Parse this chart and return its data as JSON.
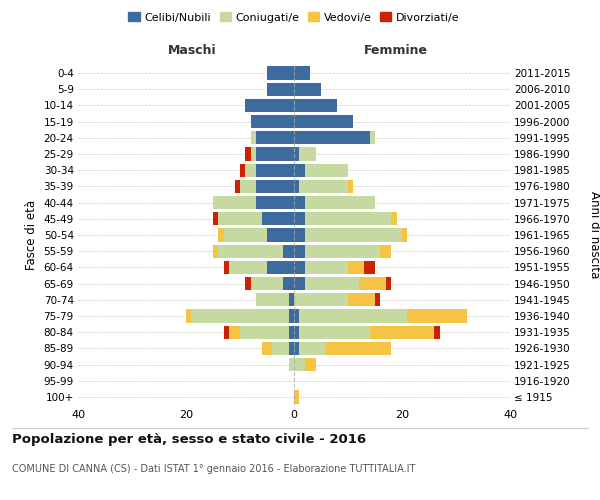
{
  "age_groups": [
    "100+",
    "95-99",
    "90-94",
    "85-89",
    "80-84",
    "75-79",
    "70-74",
    "65-69",
    "60-64",
    "55-59",
    "50-54",
    "45-49",
    "40-44",
    "35-39",
    "30-34",
    "25-29",
    "20-24",
    "15-19",
    "10-14",
    "5-9",
    "0-4"
  ],
  "birth_years": [
    "≤ 1915",
    "1916-1920",
    "1921-1925",
    "1926-1930",
    "1931-1935",
    "1936-1940",
    "1941-1945",
    "1946-1950",
    "1951-1955",
    "1956-1960",
    "1961-1965",
    "1966-1970",
    "1971-1975",
    "1976-1980",
    "1981-1985",
    "1986-1990",
    "1991-1995",
    "1996-2000",
    "2001-2005",
    "2006-2010",
    "2011-2015"
  ],
  "maschi": {
    "celibi": [
      0,
      0,
      0,
      1,
      1,
      1,
      1,
      2,
      5,
      2,
      5,
      6,
      7,
      7,
      7,
      7,
      7,
      8,
      9,
      5,
      5
    ],
    "coniugati": [
      0,
      0,
      1,
      3,
      9,
      18,
      6,
      6,
      7,
      12,
      8,
      8,
      8,
      3,
      2,
      1,
      1,
      0,
      0,
      0,
      0
    ],
    "vedovi": [
      0,
      0,
      0,
      2,
      2,
      1,
      0,
      0,
      0,
      1,
      1,
      0,
      0,
      0,
      0,
      0,
      0,
      0,
      0,
      0,
      0
    ],
    "divorziati": [
      0,
      0,
      0,
      0,
      1,
      0,
      0,
      1,
      1,
      0,
      0,
      1,
      0,
      1,
      1,
      1,
      0,
      0,
      0,
      0,
      0
    ]
  },
  "femmine": {
    "celibi": [
      0,
      0,
      0,
      1,
      1,
      1,
      0,
      2,
      2,
      2,
      2,
      2,
      2,
      1,
      2,
      1,
      14,
      11,
      8,
      5,
      3
    ],
    "coniugati": [
      0,
      0,
      2,
      5,
      13,
      20,
      10,
      10,
      8,
      14,
      18,
      16,
      13,
      9,
      8,
      3,
      1,
      0,
      0,
      0,
      0
    ],
    "vedovi": [
      1,
      0,
      2,
      12,
      12,
      11,
      5,
      5,
      3,
      2,
      1,
      1,
      0,
      1,
      0,
      0,
      0,
      0,
      0,
      0,
      0
    ],
    "divorziati": [
      0,
      0,
      0,
      0,
      1,
      0,
      1,
      1,
      2,
      0,
      0,
      0,
      0,
      0,
      0,
      0,
      0,
      0,
      0,
      0,
      0
    ]
  },
  "colors": {
    "celibi": "#3d6b9e",
    "coniugati": "#c5d9a0",
    "vedovi": "#f5c444",
    "divorziati": "#cc2200"
  },
  "xlim": 40,
  "title": "Popolazione per età, sesso e stato civile - 2016",
  "subtitle": "COMUNE DI CANNA (CS) - Dati ISTAT 1° gennaio 2016 - Elaborazione TUTTITALIA.IT",
  "ylabel": "Fasce di età",
  "ylabel_right": "Anni di nascita",
  "legend_labels": [
    "Celibi/Nubili",
    "Coniugati/e",
    "Vedovi/e",
    "Divorziati/e"
  ],
  "background_color": "#ffffff",
  "grid_color": "#bbbbbb"
}
